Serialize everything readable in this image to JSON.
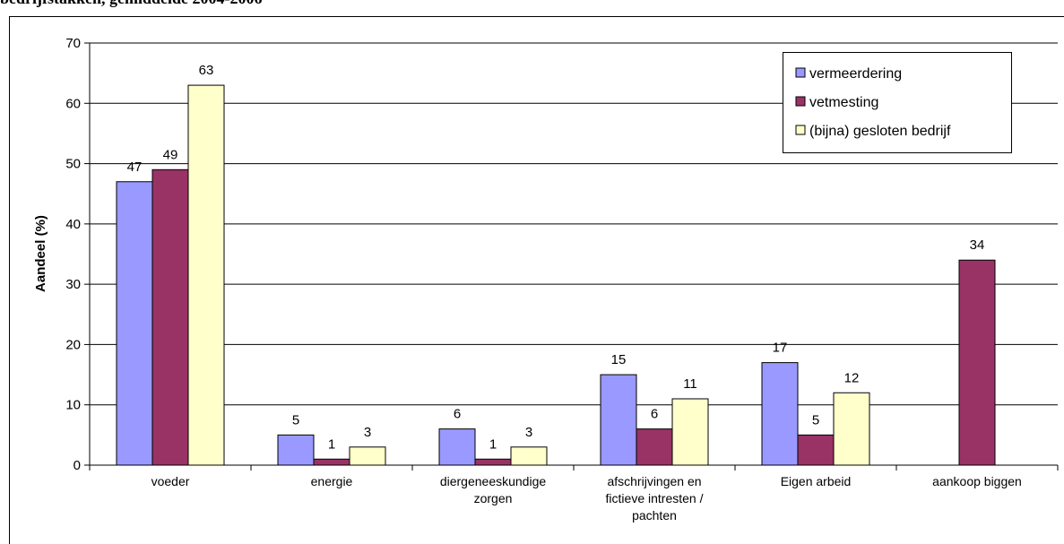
{
  "chart_data": {
    "type": "bar",
    "title": "bedrijfstakken, gemiddelde 2004-2006",
    "ylabel": "Aandeel (%)",
    "categories": [
      "voeder",
      "energie",
      "diergeneeskundige zorgen",
      "afschrijvingen en fictieve intresten / pachten",
      "Eigen arbeid",
      "aankoop biggen"
    ],
    "series": [
      {
        "name": "vermeerdering",
        "color": "#9999ff",
        "values": [
          47,
          5,
          6,
          15,
          17,
          null
        ]
      },
      {
        "name": "vetmesting",
        "color": "#993366",
        "values": [
          49,
          1,
          1,
          6,
          5,
          34
        ]
      },
      {
        "name": "(bijna) gesloten bedrijf",
        "color": "#ffffcc",
        "values": [
          63,
          3,
          3,
          11,
          12,
          null
        ]
      }
    ],
    "ylim": [
      0,
      70
    ],
    "yticks": [
      0,
      10,
      20,
      30,
      40,
      50,
      60,
      70
    ],
    "grid": true,
    "legend": "upper right"
  }
}
